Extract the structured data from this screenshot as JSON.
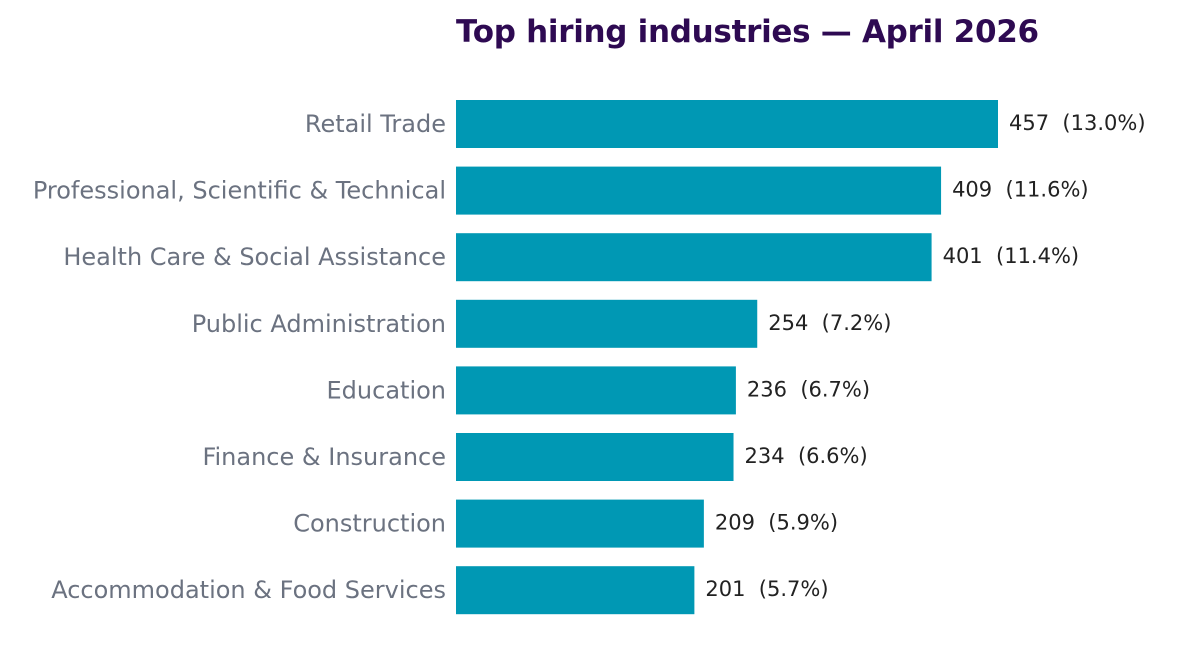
{
  "chart_data": {
    "type": "bar",
    "orientation": "horizontal",
    "title": "Top hiring industries — April 2026",
    "xlabel": "",
    "ylabel": "",
    "categories": [
      "Retail Trade",
      "Professional, Scientific & Technical",
      "Health Care & Social Assistance",
      "Public Administration",
      "Education",
      "Finance & Insurance",
      "Construction",
      "Accommodation & Food Services"
    ],
    "values": [
      457,
      409,
      401,
      254,
      236,
      234,
      209,
      201
    ],
    "value_labels": [
      "457  (13.0%)",
      "409  (11.6%)",
      "401  (11.4%)",
      "254  (7.2%)",
      "236  (6.7%)",
      "234  (6.6%)",
      "209  (5.9%)",
      "201  (5.7%)"
    ],
    "xlim": [
      0,
      457
    ],
    "grid": false,
    "legend": "none",
    "colors": {
      "bar": "#0098b4",
      "title": "#2e0a52",
      "category_label": "#6b7280",
      "value_label": "#222222"
    }
  }
}
